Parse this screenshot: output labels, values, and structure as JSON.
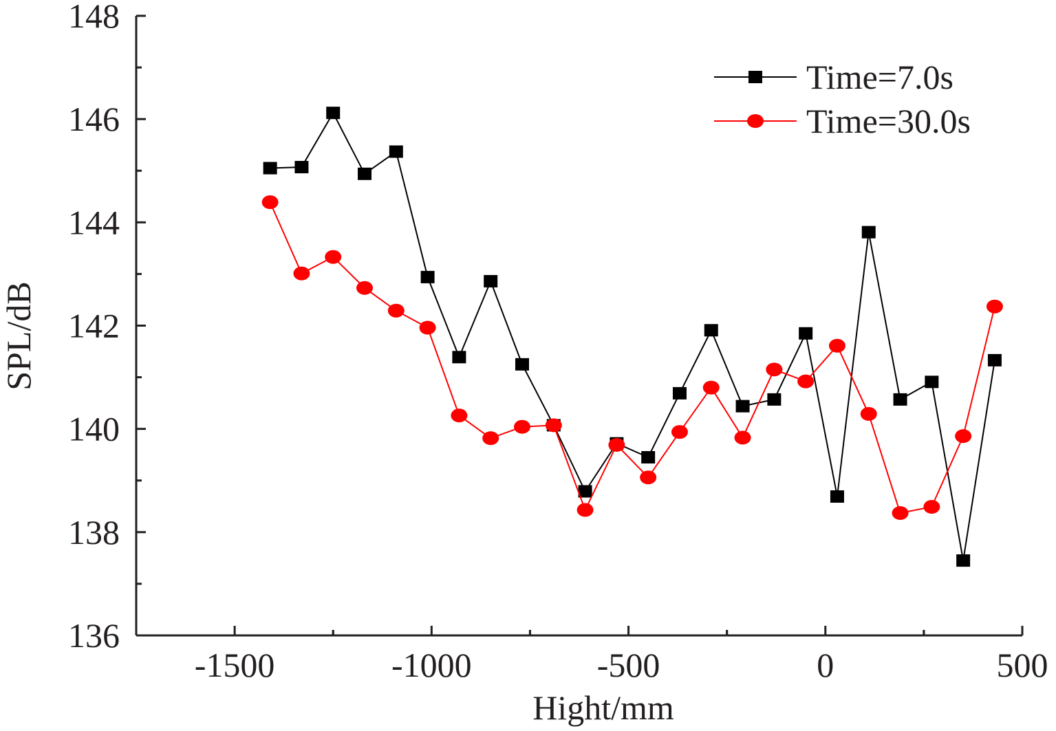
{
  "chart_data": {
    "type": "line",
    "title": "",
    "xlabel": "Hight/mm",
    "ylabel": "SPL/dB",
    "xlim": [
      -1750,
      500
    ],
    "ylim": [
      136,
      148
    ],
    "xticks": [
      -1500,
      -1000,
      -500,
      0,
      500
    ],
    "xtick_labels": [
      "-1500",
      "-1000",
      "-500",
      "0",
      "500"
    ],
    "yticks": [
      136,
      138,
      140,
      142,
      144,
      146,
      148
    ],
    "ytick_labels": [
      "136",
      "138",
      "140",
      "142",
      "144",
      "146",
      "148"
    ],
    "grid": false,
    "legend_position": "top-right",
    "x": [
      -1410,
      -1330,
      -1250,
      -1170,
      -1090,
      -1010,
      -930,
      -850,
      -770,
      -690,
      -610,
      -530,
      -450,
      -370,
      -290,
      -210,
      -130,
      -50,
      30,
      110,
      190,
      270,
      350,
      430
    ],
    "series": [
      {
        "name": "Time=7.0s",
        "color": "#000000",
        "marker": "square",
        "values": [
          145.05,
          145.07,
          146.12,
          144.94,
          145.37,
          142.94,
          141.39,
          142.86,
          141.25,
          140.07,
          138.79,
          139.72,
          139.45,
          140.69,
          141.91,
          140.44,
          140.57,
          141.85,
          138.69,
          143.81,
          140.57,
          140.91,
          137.45,
          141.33
        ]
      },
      {
        "name": "Time=30.0s",
        "color": "#ff0000",
        "marker": "circle",
        "values": [
          144.39,
          143.01,
          143.33,
          142.73,
          142.29,
          141.96,
          140.26,
          139.82,
          140.04,
          140.07,
          138.43,
          139.69,
          139.06,
          139.94,
          140.8,
          139.83,
          141.15,
          140.92,
          141.61,
          140.29,
          138.37,
          138.49,
          139.86,
          142.37
        ]
      }
    ]
  }
}
